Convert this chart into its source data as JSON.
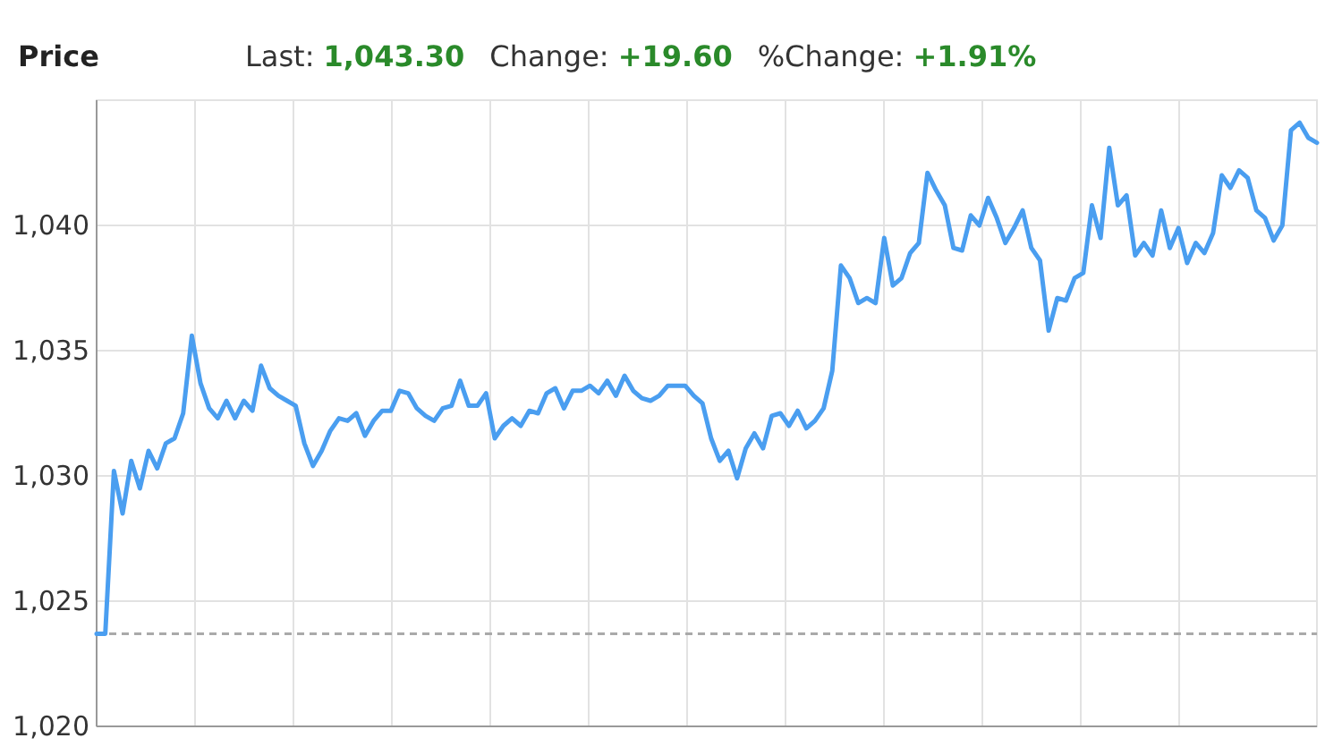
{
  "chart_data": {
    "type": "line",
    "title": "Price",
    "annotations": [
      "Last:",
      "1,043.30",
      "Change:",
      "+19.60",
      "%Change:",
      "+1.91%"
    ],
    "categories": [
      null,
      null,
      null,
      null,
      null,
      null,
      null,
      null,
      null,
      null,
      null,
      null,
      null,
      null,
      null,
      null,
      null,
      null,
      null,
      null,
      null,
      null,
      null,
      null,
      null,
      null,
      null,
      null,
      null,
      null,
      null,
      null,
      null,
      null,
      null,
      null,
      null,
      null,
      null,
      null,
      null,
      null,
      null,
      null,
      null,
      null,
      null,
      null,
      null,
      null,
      null,
      null,
      null,
      null,
      null,
      null,
      null,
      null,
      null,
      null,
      null,
      null,
      null,
      null,
      null,
      null,
      null,
      null,
      null,
      null,
      null,
      null,
      null,
      null,
      null,
      null,
      null,
      null,
      null,
      null,
      null,
      null,
      null,
      null,
      null,
      null,
      null,
      null,
      null,
      null,
      null,
      null,
      null,
      null,
      null,
      null,
      null,
      null,
      null,
      null,
      null,
      null,
      null,
      null,
      null,
      null,
      null,
      null,
      null,
      null,
      null,
      null,
      null,
      null,
      null,
      null,
      null,
      null,
      null,
      null,
      null,
      null,
      null,
      null,
      null,
      null,
      null,
      null,
      null,
      null,
      null,
      null,
      null,
      null,
      null,
      null,
      null,
      null,
      null,
      null,
      null,
      null
    ],
    "ylim": [
      1020,
      1045
    ],
    "yticks": [
      {
        "value": 1020,
        "label": "1,020"
      },
      {
        "value": 1025,
        "label": "1,025"
      },
      {
        "value": 1030,
        "label": "1,030"
      },
      {
        "value": 1035,
        "label": "1,035"
      },
      {
        "value": 1040,
        "label": "1,040"
      }
    ],
    "tick_labels": "y",
    "grid": true,
    "line_style": "solid",
    "marker": "none",
    "ref_lines": [
      {
        "axis": "y",
        "value": 1023.7,
        "color": "#aaaaaa",
        "line_style": "dashed"
      }
    ],
    "series": [
      {
        "color": "#4a9ef0",
        "values": [
          1023.7,
          1023.7,
          1030.2,
          1028.5,
          1030.6,
          1029.5,
          1031,
          1030.3,
          1031.3,
          1031.5,
          1032.5,
          1035.6,
          1033.7,
          1032.7,
          1032.3,
          1033,
          1032.3,
          1033,
          1032.6,
          1034.4,
          1033.5,
          1033.2,
          1033,
          1032.8,
          1031.3,
          1030.4,
          1031,
          1031.8,
          1032.3,
          1032.2,
          1032.5,
          1031.6,
          1032.2,
          1032.6,
          1032.6,
          1033.4,
          1033.3,
          1032.7,
          1032.4,
          1032.2,
          1032.7,
          1032.8,
          1033.8,
          1032.8,
          1032.8,
          1033.3,
          1031.5,
          1032,
          1032.3,
          1032,
          1032.6,
          1032.5,
          1033.3,
          1033.5,
          1032.7,
          1033.4,
          1033.4,
          1033.6,
          1033.3,
          1033.8,
          1033.2,
          1034,
          1033.4,
          1033.1,
          1033,
          1033.2,
          1033.6,
          1033.6,
          1033.6,
          1033.2,
          1032.9,
          1031.5,
          1030.6,
          1031,
          1029.9,
          1031.1,
          1031.7,
          1031.1,
          1032.4,
          1032.5,
          1032,
          1032.6,
          1031.9,
          1032.2,
          1032.7,
          1034.2,
          1038.4,
          1037.9,
          1036.9,
          1037.1,
          1036.9,
          1039.5,
          1037.6,
          1037.9,
          1038.9,
          1039.3,
          1042.1,
          1041.4,
          1040.8,
          1039.1,
          1039,
          1040.4,
          1040,
          1041.1,
          1040.3,
          1039.3,
          1039.9,
          1040.6,
          1039.1,
          1038.6,
          1035.8,
          1037.1,
          1037,
          1037.9,
          1038.1,
          1040.8,
          1039.5,
          1043.1,
          1040.8,
          1041.2,
          1038.8,
          1039.3,
          1038.8,
          1040.6,
          1039.1,
          1039.9,
          1038.5,
          1039.3,
          1038.9,
          1039.7,
          1042,
          1041.5,
          1042.2,
          1041.9,
          1040.6,
          1040.3,
          1039.4,
          1040,
          1043.8,
          1044.1,
          1043.5,
          1043.3
        ]
      }
    ]
  }
}
